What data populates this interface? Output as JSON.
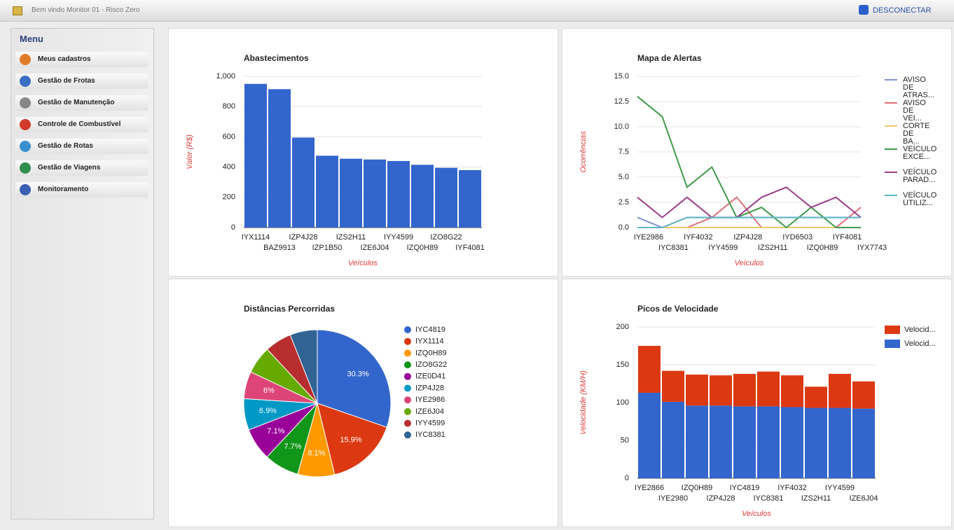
{
  "header": {
    "title": "Bem vindo Monitor 01 - Risco Zero",
    "logout": "DESCONECTAR"
  },
  "menu": {
    "title": "Menu",
    "items": [
      "Meus cadastros",
      "Gestão de Frotas",
      "Gestão de Manutenção",
      "Controle de Combustível",
      "Gestão de Rotas",
      "Gestão de Viagens",
      "Monitoramento"
    ]
  },
  "chart_data": [
    {
      "type": "bar",
      "title": "Abastecimentos",
      "y_label": "Valor (R$)",
      "x_label": "Veículos",
      "categories": [
        "IYX1114",
        "BAZ9913",
        "IZP4J28",
        "IZP1B50",
        "IZS2H11",
        "IZE6J04",
        "IYY4599",
        "IZQ0H89",
        "IZO8G22",
        "IYF4081"
      ],
      "values": [
        950,
        915,
        595,
        475,
        455,
        450,
        440,
        415,
        395,
        380
      ],
      "color": "#3366cc",
      "ylim": [
        0,
        1000
      ],
      "yticks": [
        0,
        200,
        400,
        600,
        800,
        {
          "value": 1000,
          "label": "1,000"
        }
      ],
      "grid": true
    },
    {
      "type": "line",
      "title": "Mapa de Alertas",
      "y_label": "Ocorrências",
      "x_label": "Veículos",
      "categories": [
        "IYE2986",
        "IYC8381",
        "IYF4032",
        "IYY4599",
        "IZP4J28",
        "IZS2H11",
        "IYD6503",
        "IZQ0H89",
        "IYF4081",
        "IYX7743"
      ],
      "series": [
        {
          "name": "AVISO DE ATRAS...",
          "color": "#7f93d6",
          "values": [
            1,
            0,
            1,
            1,
            1,
            1,
            1,
            1,
            1,
            1
          ]
        },
        {
          "name": "AVISO DE VEI...",
          "color": "#e0707a",
          "values": [
            0,
            0,
            0,
            1,
            3,
            0,
            0,
            0,
            0,
            2
          ]
        },
        {
          "name": "CORTE DE BA...",
          "color": "#f5c76a",
          "values": [
            0,
            0,
            0,
            0,
            0,
            0,
            0,
            0,
            0,
            0
          ]
        },
        {
          "name": "VEÍCULO EXCE...",
          "color": "#3f9a4a",
          "values": [
            13,
            11,
            4,
            6,
            1,
            2,
            0,
            2,
            0,
            0
          ]
        },
        {
          "name": "VEÍCULO PARAD...",
          "color": "#9a3f8a",
          "values": [
            3,
            1,
            3,
            1,
            1,
            3,
            4,
            2,
            3,
            1
          ]
        },
        {
          "name": "VEÍCULO UTILIZ...",
          "color": "#5fb7c6",
          "values": [
            0,
            0,
            1,
            1,
            1,
            1,
            1,
            1,
            1,
            1
          ]
        }
      ],
      "ylim": [
        0,
        15
      ],
      "yticks": [
        {
          "value": 0,
          "label": "0.0"
        },
        {
          "value": 2.5,
          "label": "2.5"
        },
        {
          "value": 5,
          "label": "5.0"
        },
        {
          "value": 7.5,
          "label": "7.5"
        },
        {
          "value": 10,
          "label": "10.0"
        },
        {
          "value": 12.5,
          "label": "12.5"
        },
        {
          "value": 15,
          "label": "15.0"
        }
      ],
      "grid": true
    },
    {
      "type": "pie",
      "title": "Distâncias Percorridas",
      "categories": [
        "IYC4819",
        "IYX1114",
        "IZQ0H89",
        "IZO8G22",
        "IZE0D41",
        "IZP4J28",
        "IYE2986",
        "IZE6J04",
        "IYY4599",
        "IYC8381"
      ],
      "values": [
        30.3,
        15.9,
        8.1,
        7.7,
        7.1,
        6.9,
        6,
        6.1,
        5.9,
        6
      ],
      "value_labels": [
        "30.3%",
        "15.9%",
        "8.1%",
        "7.7%",
        "7.1%",
        "6.9%",
        "6%",
        null,
        null,
        null
      ],
      "colors": [
        "#3366cc",
        "#dc3912",
        "#ff9900",
        "#109618",
        "#990099",
        "#0099c6",
        "#dd4477",
        "#66aa00",
        "#b82e2e",
        "#316395"
      ]
    },
    {
      "type": "bar",
      "stacked": true,
      "title": "Picos de Velocidade",
      "y_label": "Velocidade (KM/H)",
      "x_label": "Veículos",
      "categories": [
        "IYE2866",
        "IYE2980",
        "IZQ0H89",
        "IZP4J28",
        "IYC4819",
        "IYC8381",
        "IYF4032",
        "IZS2H11",
        "IYY4599",
        "IZE6J04"
      ],
      "series": [
        {
          "name": "Velocid...",
          "color": "#3366cc",
          "values": [
            113,
            101,
            96,
            96,
            95,
            95,
            94,
            93,
            93,
            92
          ]
        },
        {
          "name": "Velocid...",
          "color": "#dc3912",
          "values": [
            62,
            41,
            41,
            40,
            43,
            46,
            42,
            28,
            45,
            36
          ]
        }
      ],
      "ylim": [
        0,
        200
      ],
      "yticks": [
        0,
        50,
        100,
        150,
        200
      ],
      "grid": true
    }
  ]
}
